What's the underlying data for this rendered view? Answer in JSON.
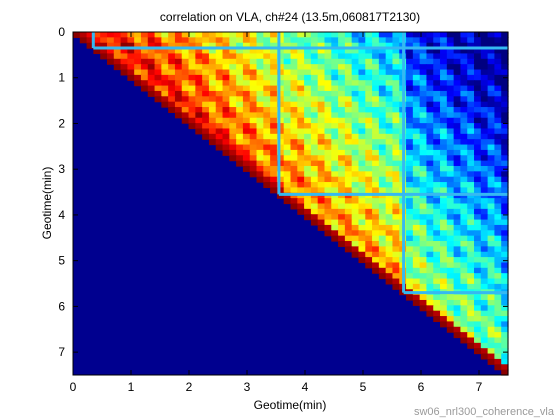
{
  "chart_data": {
    "type": "heatmap",
    "title": "correlation on VLA, ch#24 (13.5m,060817T2130)",
    "xlabel": "Geotime(min)",
    "ylabel": "Geotime(min)",
    "xlim": [
      0,
      7.5
    ],
    "ylim": [
      0,
      7.5
    ],
    "y_direction": "reversed",
    "xticks": [
      0,
      1,
      2,
      3,
      4,
      5,
      6,
      7
    ],
    "yticks": [
      0,
      1,
      2,
      3,
      4,
      5,
      6,
      7
    ],
    "colormap": "jet",
    "upper_triangle_only": true,
    "highlight_marks": [
      {
        "row": 0.35,
        "col": 0.35
      },
      {
        "row": 3.55,
        "col": 3.55
      },
      {
        "row": 5.7,
        "col": 5.7
      }
    ],
    "colors": {
      "low": "#00008f",
      "high": "#800000",
      "highlight": "#35b9f2"
    }
  },
  "footer": {
    "filename": "sw06_nrl300_coherence_vla"
  }
}
